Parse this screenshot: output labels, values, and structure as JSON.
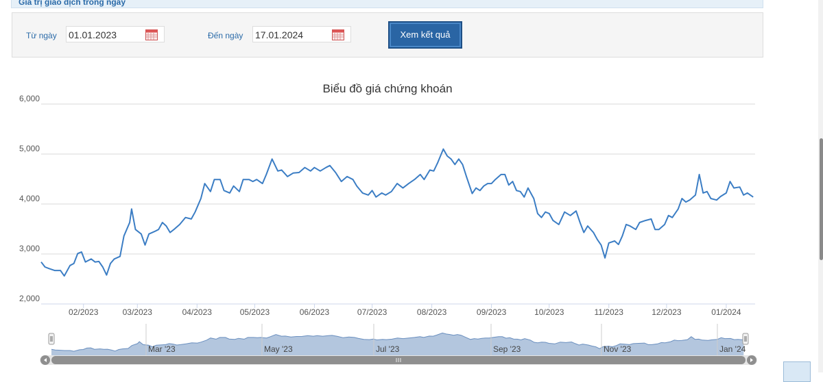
{
  "header": {
    "title": "Giá trị giao dịch trong ngày"
  },
  "form": {
    "from_label": "Từ ngày",
    "from_value": "01.01.2023",
    "to_label": "Đến ngày",
    "to_value": "17.01.2024",
    "button": "Xem kết quả"
  },
  "chart_data": {
    "type": "line",
    "title": "Biểu đồ giá chứng khoán",
    "color": "#3b7dc4",
    "grid": true,
    "xlim": [
      9,
      380
    ],
    "xticks": [
      {
        "value": 31,
        "label": "02/2023"
      },
      {
        "value": 59,
        "label": "03/2023"
      },
      {
        "value": 90,
        "label": "04/2023"
      },
      {
        "value": 120,
        "label": "05/2023"
      },
      {
        "value": 151,
        "label": "06/2023"
      },
      {
        "value": 181,
        "label": "07/2023"
      },
      {
        "value": 212,
        "label": "08/2023"
      },
      {
        "value": 243,
        "label": "09/2023"
      },
      {
        "value": 273,
        "label": "10/2023"
      },
      {
        "value": 304,
        "label": "11/2023"
      },
      {
        "value": 334,
        "label": "12/2023"
      },
      {
        "value": 365,
        "label": "01/2024"
      }
    ],
    "ylim": [
      2000,
      6000
    ],
    "yticks": [
      {
        "value": 2000,
        "label": "2,000"
      },
      {
        "value": 3000,
        "label": "3,000"
      },
      {
        "value": 4000,
        "label": "4,000"
      },
      {
        "value": 5000,
        "label": "5,000"
      },
      {
        "value": 6000,
        "label": "6,000"
      }
    ],
    "x": [
      9,
      11,
      13,
      16,
      19,
      21,
      24,
      26,
      28,
      30,
      32,
      35,
      37,
      39,
      41,
      43,
      45,
      47,
      50,
      52,
      55,
      56,
      58,
      61,
      63,
      65,
      68,
      70,
      72,
      74,
      76,
      78,
      81,
      84,
      87,
      89,
      92,
      94,
      97,
      99,
      102,
      104,
      107,
      109,
      112,
      114,
      117,
      119,
      121,
      124,
      126,
      129,
      132,
      134,
      137,
      140,
      143,
      146,
      149,
      151,
      154,
      157,
      159,
      162,
      165,
      168,
      171,
      173,
      176,
      179,
      181,
      183,
      186,
      188,
      191,
      194,
      197,
      200,
      203,
      206,
      208,
      211,
      213,
      215,
      218,
      220,
      222,
      224,
      226,
      228,
      230,
      233,
      235,
      237,
      239,
      241,
      243,
      245,
      248,
      250,
      252,
      254,
      256,
      258,
      260,
      262,
      265,
      267,
      269,
      271,
      273,
      275,
      278,
      281,
      284,
      287,
      289,
      291,
      293,
      296,
      298,
      300,
      302,
      304,
      307,
      309,
      311,
      313,
      315,
      318,
      320,
      323,
      326,
      328,
      330,
      333,
      335,
      337,
      340,
      342,
      344,
      346,
      349,
      351,
      353,
      355,
      357,
      360,
      362,
      365,
      367,
      369,
      372,
      374,
      376,
      379
    ],
    "values": [
      2840,
      2740,
      2710,
      2670,
      2670,
      2560,
      2770,
      2810,
      3010,
      3040,
      2840,
      2900,
      2840,
      2850,
      2740,
      2580,
      2810,
      2900,
      2950,
      3360,
      3630,
      3900,
      3490,
      3400,
      3180,
      3400,
      3450,
      3490,
      3630,
      3560,
      3430,
      3490,
      3590,
      3730,
      3700,
      3840,
      4110,
      4410,
      4250,
      4490,
      4490,
      4270,
      4220,
      4360,
      4250,
      4490,
      4490,
      4450,
      4490,
      4410,
      4590,
      4900,
      4660,
      4680,
      4550,
      4620,
      4630,
      4730,
      4660,
      4730,
      4660,
      4730,
      4770,
      4630,
      4450,
      4550,
      4490,
      4360,
      4220,
      4180,
      4270,
      4140,
      4220,
      4180,
      4250,
      4410,
      4320,
      4410,
      4490,
      4590,
      4490,
      4680,
      4660,
      4820,
      5100,
      4960,
      4900,
      4790,
      4900,
      4790,
      4550,
      4210,
      4320,
      4270,
      4360,
      4410,
      4410,
      4490,
      4590,
      4590,
      4380,
      4450,
      4270,
      4250,
      4140,
      4320,
      4110,
      3810,
      3730,
      3840,
      3810,
      3670,
      3590,
      3840,
      3770,
      3860,
      3630,
      3430,
      3560,
      3430,
      3290,
      3180,
      2920,
      3220,
      3260,
      3190,
      3360,
      3590,
      3560,
      3490,
      3630,
      3670,
      3700,
      3490,
      3490,
      3590,
      3770,
      3730,
      3900,
      4110,
      4040,
      4080,
      4180,
      4590,
      4220,
      4250,
      4110,
      4080,
      4150,
      4220,
      4450,
      4320,
      4340,
      4180,
      4220,
      4140
    ]
  },
  "navigator": {
    "labels": [
      "Mar '23",
      "May '23",
      "Jul '23",
      "Sep '23",
      "Nov '23",
      "Jan '24"
    ]
  }
}
